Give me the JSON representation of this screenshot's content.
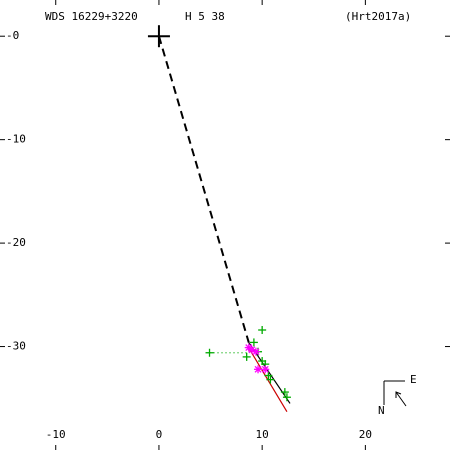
{
  "chart_data": {
    "type": "scatter",
    "title": "WDS 16229+3220",
    "subtitle": "H 5  38",
    "reference": "(Hrt2017a)",
    "compass": {
      "east": "E",
      "north": "N"
    },
    "xlim": [
      -15.4,
      28.2
    ],
    "ylim": [
      -40,
      3.5
    ],
    "xticks": [
      -10,
      0,
      10,
      20
    ],
    "yticks": [
      {
        "value": 0,
        "label": "-0"
      },
      -10,
      -20,
      -30
    ],
    "series": [
      {
        "style": "primary",
        "color": "#000000",
        "x": [
          0
        ],
        "y": [
          0
        ]
      },
      {
        "style": "dashed",
        "color": "#000000",
        "x": [
          0,
          8.7
        ],
        "y": [
          0,
          -29.6
        ]
      },
      {
        "style": "solid",
        "color": "#000000",
        "x": [
          8.7,
          12.7
        ],
        "y": [
          -29.6,
          -35.5
        ]
      },
      {
        "style": "solid",
        "color": "#cc0000",
        "x": [
          8.8,
          12.4
        ],
        "y": [
          -30.3,
          -36.3
        ]
      },
      {
        "style": "dotted",
        "color": "#00aa00",
        "x": [
          4.9,
          8.8
        ],
        "y": [
          -30.6,
          -30.6
        ]
      },
      {
        "style": "plus",
        "color": "#00aa00",
        "x": [
          4.9,
          10.0,
          8.5,
          9.2,
          10.3,
          10.6,
          10.8,
          12.2,
          12.4,
          9.6,
          10.0
        ],
        "y": [
          -30.6,
          -28.4,
          -31.0,
          -29.6,
          -31.7,
          -32.8,
          -33.2,
          -34.4,
          -34.9,
          -30.5,
          -31.4
        ]
      },
      {
        "style": "star",
        "color": "#ff00ff",
        "x": [
          8.7,
          9.4,
          9.6,
          10.3,
          9.0
        ],
        "y": [
          -30.1,
          -30.5,
          -32.2,
          -32.2,
          -30.3
        ]
      }
    ]
  }
}
